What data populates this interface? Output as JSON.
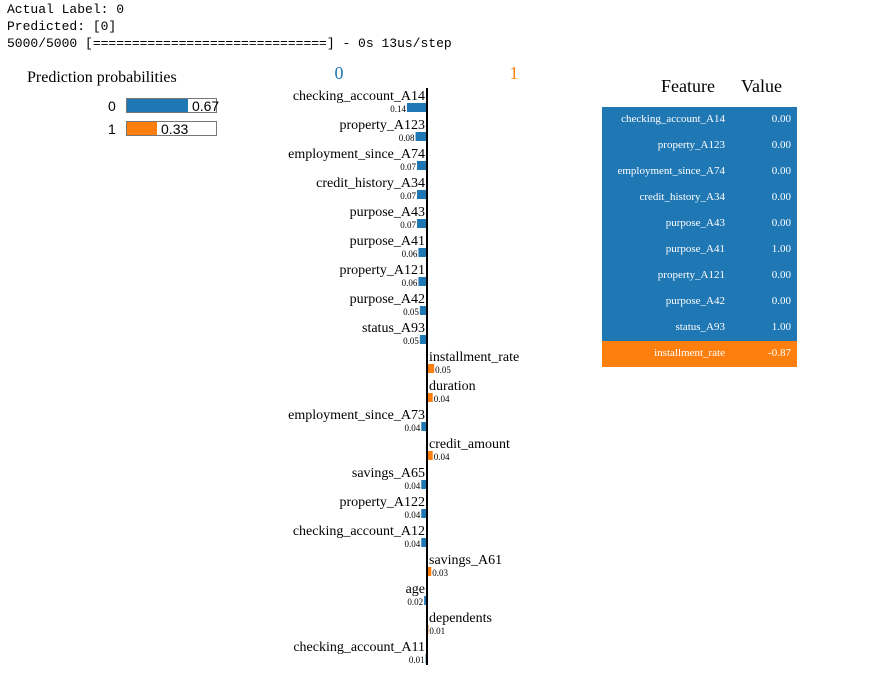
{
  "console": {
    "lines": [
      "Actual Label: 0",
      "Predicted: [0]",
      "5000/5000 [==============================] - 0s 13us/step"
    ]
  },
  "prediction_probabilities": {
    "title": "Prediction probabilities",
    "items": [
      {
        "label": "0",
        "value": 0.67,
        "text": "0.67",
        "color": "#1f77b4"
      },
      {
        "label": "1",
        "value": 0.33,
        "text": "0.33",
        "color": "#ff7f0e"
      }
    ]
  },
  "chart_data": {
    "type": "bar",
    "class_labels": [
      "0",
      "1"
    ],
    "colors": {
      "0": "#1f77b4",
      "1": "#ff7f0e"
    },
    "features": [
      {
        "name": "checking_account_A14",
        "weight": 0.14,
        "class": "0"
      },
      {
        "name": "property_A123",
        "weight": 0.08,
        "class": "0"
      },
      {
        "name": "employment_since_A74",
        "weight": 0.07,
        "class": "0"
      },
      {
        "name": "credit_history_A34",
        "weight": 0.07,
        "class": "0"
      },
      {
        "name": "purpose_A43",
        "weight": 0.07,
        "class": "0"
      },
      {
        "name": "purpose_A41",
        "weight": 0.06,
        "class": "0"
      },
      {
        "name": "property_A121",
        "weight": 0.06,
        "class": "0"
      },
      {
        "name": "purpose_A42",
        "weight": 0.05,
        "class": "0"
      },
      {
        "name": "status_A93",
        "weight": 0.05,
        "class": "0"
      },
      {
        "name": "installment_rate",
        "weight": 0.05,
        "class": "1"
      },
      {
        "name": "duration",
        "weight": 0.04,
        "class": "1"
      },
      {
        "name": "employment_since_A73",
        "weight": 0.04,
        "class": "0"
      },
      {
        "name": "credit_amount",
        "weight": 0.04,
        "class": "1"
      },
      {
        "name": "savings_A65",
        "weight": 0.04,
        "class": "0"
      },
      {
        "name": "property_A122",
        "weight": 0.04,
        "class": "0"
      },
      {
        "name": "checking_account_A12",
        "weight": 0.04,
        "class": "0"
      },
      {
        "name": "savings_A61",
        "weight": 0.03,
        "class": "1"
      },
      {
        "name": "age",
        "weight": 0.02,
        "class": "0"
      },
      {
        "name": "dependents",
        "weight": 0.01,
        "class": "1"
      },
      {
        "name": "checking_account_A11",
        "weight": 0.01,
        "class": "0"
      }
    ]
  },
  "feature_table": {
    "headers": [
      "Feature",
      "Value"
    ],
    "rows": [
      {
        "feature": "checking_account_A14",
        "value": "0.00",
        "color": "#1f77b4"
      },
      {
        "feature": "property_A123",
        "value": "0.00",
        "color": "#1f77b4"
      },
      {
        "feature": "employment_since_A74",
        "value": "0.00",
        "color": "#1f77b4"
      },
      {
        "feature": "credit_history_A34",
        "value": "0.00",
        "color": "#1f77b4"
      },
      {
        "feature": "purpose_A43",
        "value": "0.00",
        "color": "#1f77b4"
      },
      {
        "feature": "purpose_A41",
        "value": "1.00",
        "color": "#1f77b4"
      },
      {
        "feature": "property_A121",
        "value": "0.00",
        "color": "#1f77b4"
      },
      {
        "feature": "purpose_A42",
        "value": "0.00",
        "color": "#1f77b4"
      },
      {
        "feature": "status_A93",
        "value": "1.00",
        "color": "#1f77b4"
      },
      {
        "feature": "installment_rate",
        "value": "-0.87",
        "color": "#ff7f0e"
      }
    ]
  }
}
